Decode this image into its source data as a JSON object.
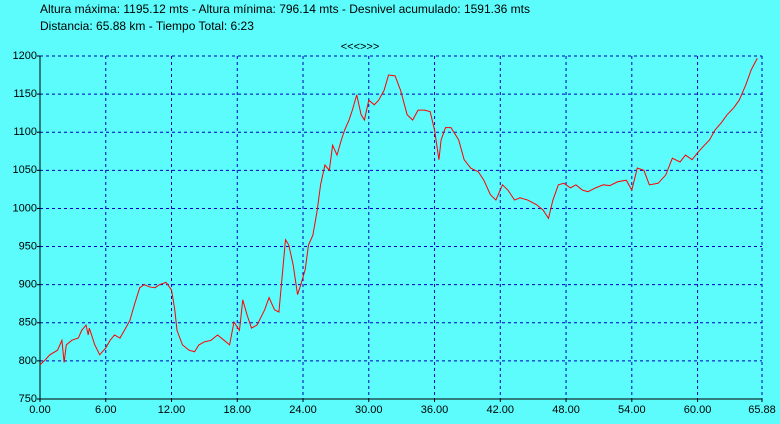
{
  "chart_data": {
    "type": "line",
    "title": "Altura máxima: 1195.12 mts - Altura mínima: 796.14 mts - Desnivel acumulado: 1591.36 mts",
    "subtitle": "Distancia: 65.88 km - Tiempo Total: 6:23",
    "navigation": "<<<>>>",
    "grid": true,
    "xlim": [
      0,
      65.88
    ],
    "ylim": [
      750,
      1200
    ],
    "xticks": [
      {
        "value": 0,
        "label": "0.00"
      },
      {
        "value": 6,
        "label": "6.00"
      },
      {
        "value": 12,
        "label": "12.00"
      },
      {
        "value": 18,
        "label": "18.00"
      },
      {
        "value": 24,
        "label": "24.00"
      },
      {
        "value": 30,
        "label": "30.00"
      },
      {
        "value": 36,
        "label": "36.00"
      },
      {
        "value": 42,
        "label": "42.00"
      },
      {
        "value": 48,
        "label": "48.00"
      },
      {
        "value": 54,
        "label": "54.00"
      },
      {
        "value": 60,
        "label": "60.00"
      },
      {
        "value": 65.88,
        "label": "65.88"
      }
    ],
    "yticks": [
      750,
      800,
      850,
      900,
      950,
      1000,
      1050,
      1100,
      1150,
      1200
    ],
    "series": [
      {
        "color": "#ff0000",
        "x": [
          0,
          0.45,
          0.9,
          1.6,
          2.0,
          2.2,
          2.4,
          2.9,
          3.5,
          3.8,
          4.2,
          4.4,
          4.5,
          5.0,
          5.45,
          6.0,
          6.4,
          6.8,
          7.3,
          7.7,
          8.2,
          8.6,
          9.1,
          9.5,
          10.0,
          10.5,
          10.9,
          11.5,
          12.0,
          12.3,
          12.5,
          13.0,
          13.6,
          14.1,
          14.5,
          15.0,
          15.6,
          16.2,
          16.8,
          17.3,
          17.7,
          18.2,
          18.5,
          18.9,
          19.3,
          19.8,
          20.5,
          20.9,
          21.4,
          21.8,
          22.4,
          22.7,
          23.1,
          23.5,
          23.8,
          24.2,
          24.5,
          24.9,
          25.3,
          25.6,
          26.0,
          26.4,
          26.7,
          27.1,
          27.5,
          27.8,
          28.2,
          28.5,
          28.9,
          29.3,
          29.6,
          30.0,
          30.5,
          30.9,
          31.4,
          31.8,
          32.4,
          32.9,
          33.5,
          34.0,
          34.5,
          35.1,
          35.6,
          36.0,
          36.4,
          36.6,
          37.0,
          37.5,
          38.2,
          38.7,
          39.3,
          40.0,
          40.5,
          41.1,
          41.6,
          42.2,
          42.7,
          43.3,
          43.8,
          44.5,
          45.3,
          45.9,
          46.4,
          46.8,
          47.3,
          47.8,
          48.4,
          48.9,
          49.5,
          50.0,
          50.7,
          51.4,
          52.0,
          52.7,
          53.5,
          54.0,
          54.5,
          55.1,
          55.6,
          56.4,
          57.1,
          57.7,
          58.4,
          58.9,
          59.5,
          60.0,
          60.5,
          61.1,
          61.6,
          62.2,
          62.7,
          63.3,
          63.8,
          64.4,
          64.9,
          65.45
        ],
        "values": [
          795,
          801,
          808,
          814,
          827,
          798,
          821,
          827,
          830,
          840,
          847,
          834,
          843,
          821,
          808,
          817,
          827,
          834,
          830,
          840,
          853,
          873,
          896,
          900,
          897,
          896,
          900,
          903,
          893,
          867,
          840,
          821,
          814,
          812,
          821,
          825,
          827,
          834,
          827,
          821,
          851,
          840,
          880,
          860,
          843,
          847,
          867,
          883,
          867,
          864,
          959,
          952,
          926,
          887,
          900,
          920,
          952,
          965,
          998,
          1031,
          1057,
          1050,
          1083,
          1070,
          1090,
          1103,
          1116,
          1129,
          1149,
          1123,
          1116,
          1142,
          1136,
          1142,
          1155,
          1175,
          1174,
          1155,
          1123,
          1116,
          1129,
          1129,
          1127,
          1103,
          1064,
          1090,
          1106,
          1106,
          1090,
          1064,
          1053,
          1048,
          1037,
          1018,
          1011,
          1031,
          1024,
          1011,
          1014,
          1011,
          1005,
          998,
          987,
          1011,
          1031,
          1033,
          1027,
          1031,
          1024,
          1022,
          1027,
          1031,
          1030,
          1035,
          1037,
          1024,
          1053,
          1050,
          1031,
          1033,
          1044,
          1066,
          1061,
          1070,
          1064,
          1073,
          1081,
          1090,
          1103,
          1113,
          1123,
          1132,
          1142,
          1162,
          1182,
          1197
        ]
      }
    ]
  }
}
